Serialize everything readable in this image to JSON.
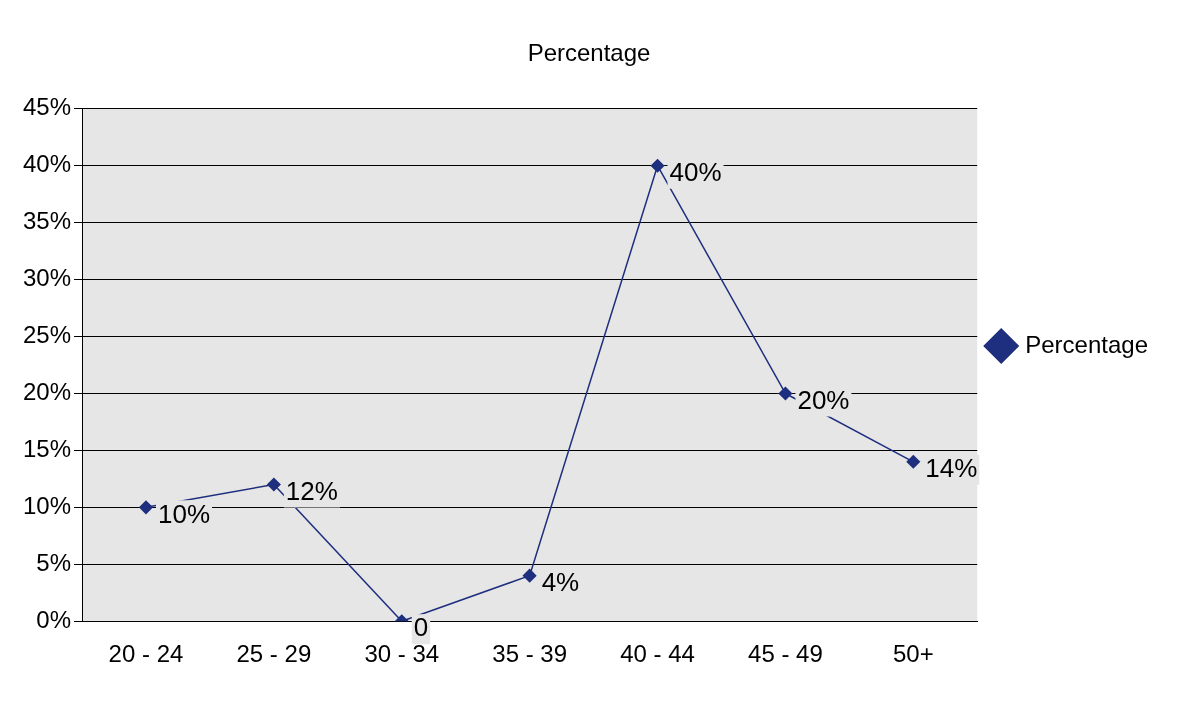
{
  "chart_data": {
    "type": "line",
    "title": "Percentage",
    "categories": [
      "20 - 24",
      "25 - 29",
      "30 - 34",
      "35 - 39",
      "40 - 44",
      "45 - 49",
      "50+"
    ],
    "series": [
      {
        "name": "Percentage",
        "color": "#1f2f7f",
        "values": [
          10,
          12,
          0,
          4,
          40,
          20,
          14
        ],
        "value_labels": [
          "10%",
          "12%",
          "0",
          "4%",
          "40%",
          "20%",
          "14%"
        ]
      }
    ],
    "ylim": [
      0,
      45
    ],
    "yticks": [
      {
        "value": 0,
        "label": "0%"
      },
      {
        "value": 5,
        "label": "5%"
      },
      {
        "value": 10,
        "label": "10%"
      },
      {
        "value": 15,
        "label": "15%"
      },
      {
        "value": 20,
        "label": "20%"
      },
      {
        "value": 25,
        "label": "25%"
      },
      {
        "value": 30,
        "label": "30%"
      },
      {
        "value": 35,
        "label": "35%"
      },
      {
        "value": 40,
        "label": "40%"
      },
      {
        "value": 45,
        "label": "45%"
      }
    ],
    "grid": "y",
    "legend": "right",
    "marker": "diamond",
    "line_style": "solid"
  }
}
